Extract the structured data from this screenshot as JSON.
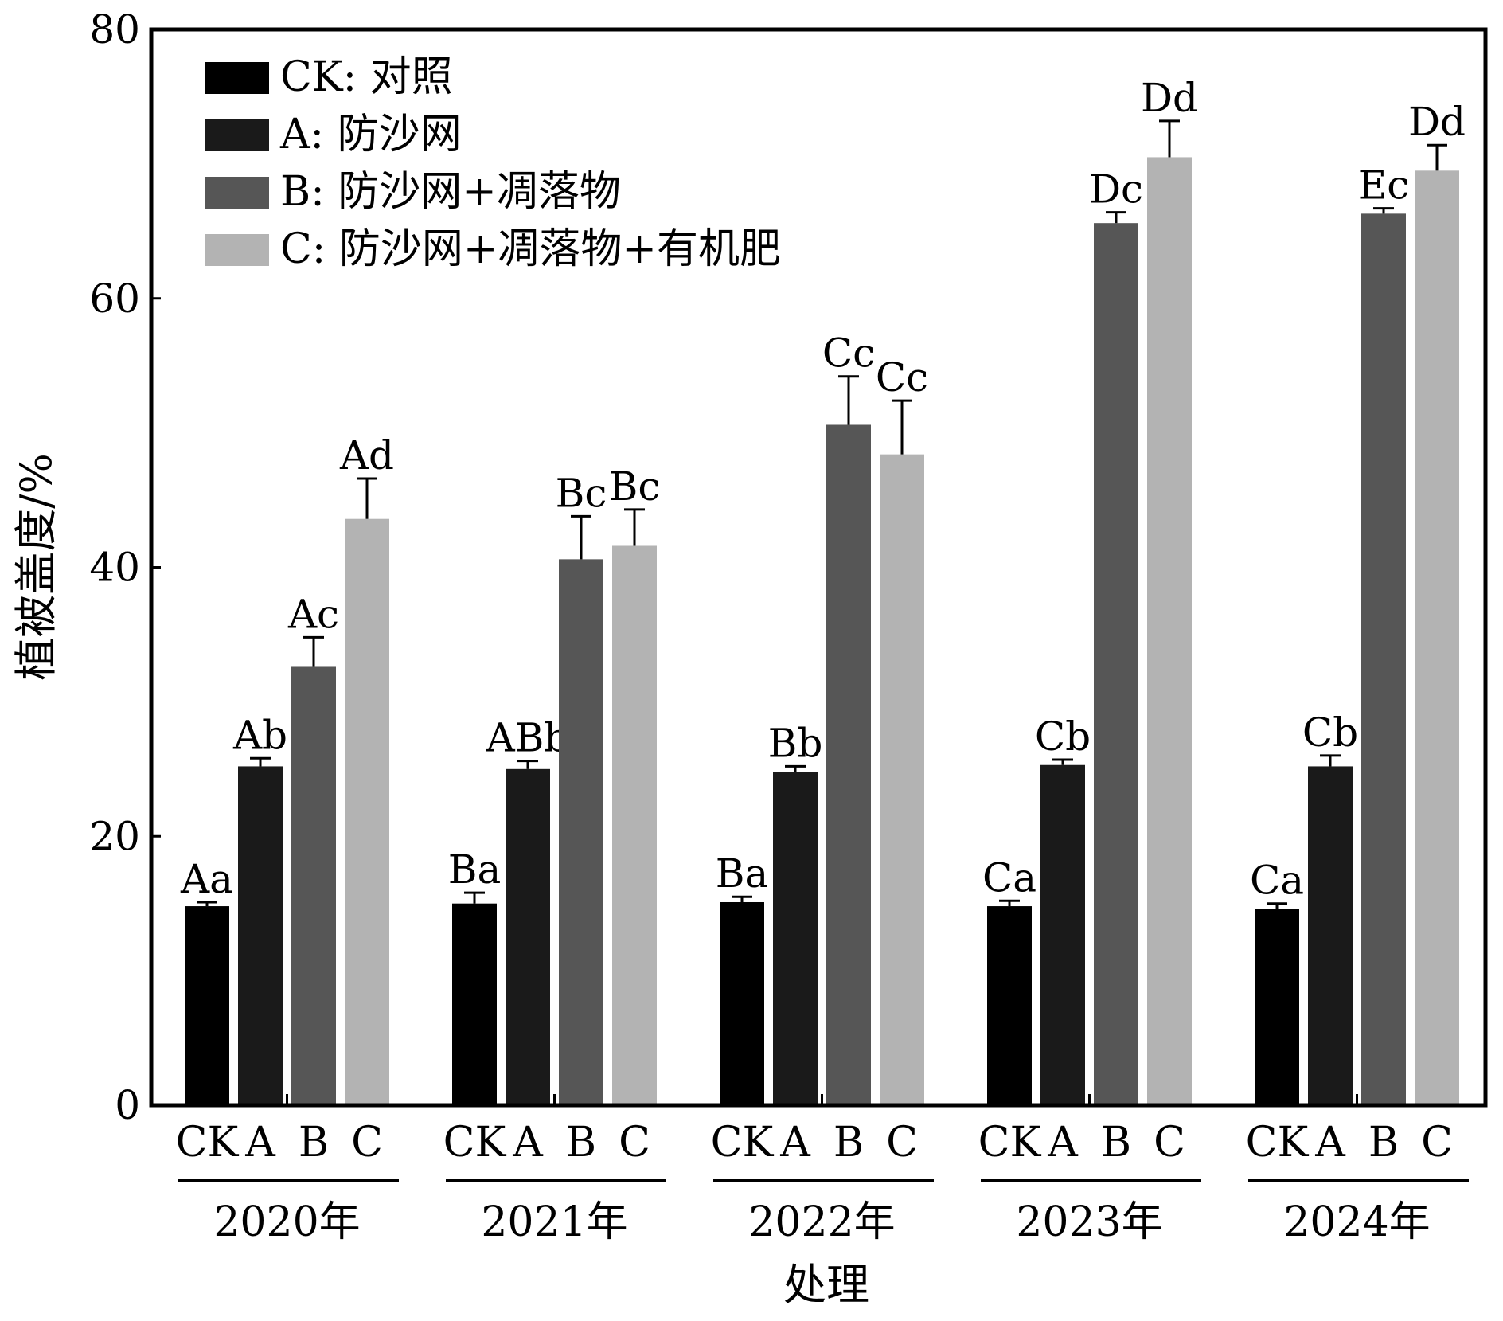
{
  "chart_data": {
    "type": "bar",
    "title": "",
    "xlabel": "处理",
    "ylabel": "植被盖度/%",
    "ylim": [
      0,
      80
    ],
    "yticks": [
      0,
      20,
      40,
      60,
      80
    ],
    "ytick_labels": [
      "0",
      "20",
      "40",
      "60",
      "80"
    ],
    "grid": false,
    "legend_position": "top-left",
    "groups": [
      "2020年",
      "2021年",
      "2022年",
      "2023年",
      "2024年"
    ],
    "series": [
      {
        "key": "CK",
        "name": "CK: 对照",
        "color": "#000000",
        "values": [
          14.8,
          15.0,
          15.1,
          14.8,
          14.6
        ],
        "errors": [
          0.3,
          0.8,
          0.4,
          0.4,
          0.4
        ],
        "labels": [
          "Aa",
          "Ba",
          "Ba",
          "Ca",
          "Ca"
        ]
      },
      {
        "key": "A",
        "name": "A: 防沙网",
        "color": "#1a1a1a",
        "values": [
          25.2,
          25.0,
          24.8,
          25.3,
          25.2
        ],
        "errors": [
          0.6,
          0.6,
          0.4,
          0.4,
          0.8
        ],
        "labels": [
          "Ab",
          "ABb",
          "Bb",
          "Cb",
          "Cb"
        ]
      },
      {
        "key": "B",
        "name": "B: 防沙网+凋落物",
        "color": "#565656",
        "values": [
          32.6,
          40.6,
          50.6,
          65.6,
          66.3
        ],
        "errors": [
          2.2,
          3.2,
          3.6,
          0.8,
          0.4
        ],
        "labels": [
          "Ac",
          "Bc",
          "Cc",
          "Dc",
          "Ec"
        ]
      },
      {
        "key": "C",
        "name": "C: 防沙网+凋落物+有机肥",
        "color": "#b3b3b3",
        "values": [
          43.6,
          41.6,
          48.4,
          70.5,
          69.5
        ],
        "errors": [
          3.0,
          2.7,
          4.0,
          2.7,
          1.9
        ],
        "labels": [
          "Ad",
          "Bc",
          "Cc",
          "Dd",
          "Dd"
        ]
      }
    ]
  }
}
